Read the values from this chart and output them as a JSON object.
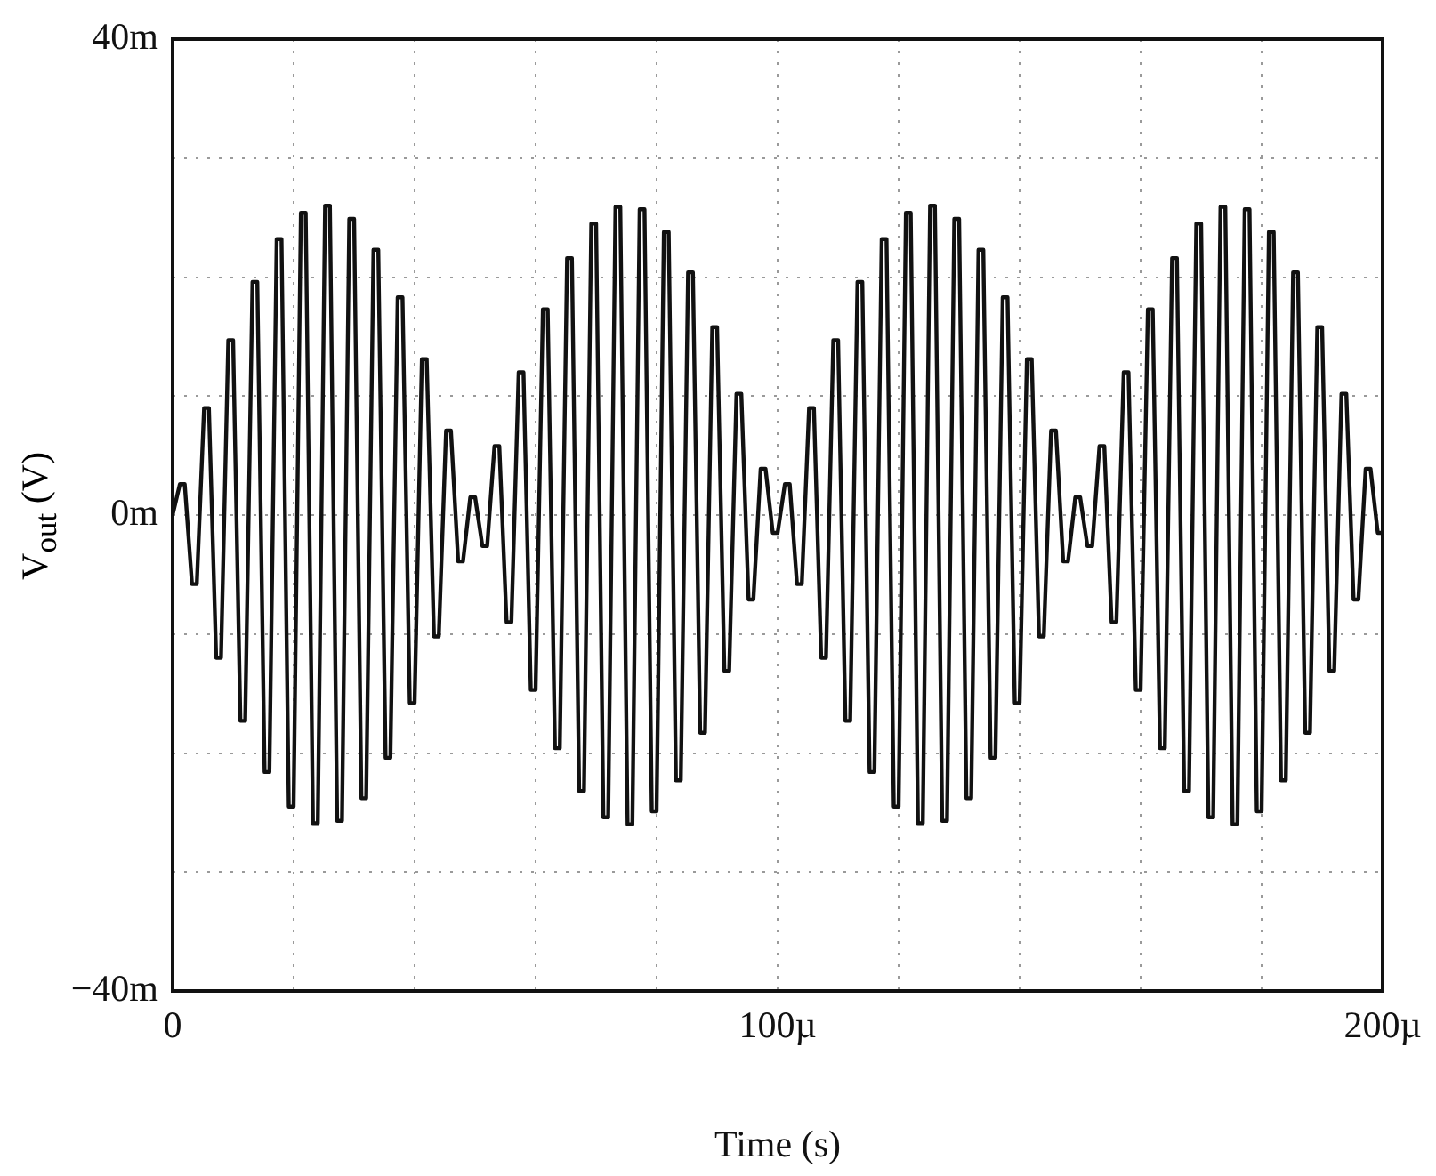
{
  "chart_data": {
    "type": "line",
    "xlabel": "Time (s)",
    "ylabel": "V$_{out}$ (V)",
    "color": "#111111",
    "grid": true,
    "line_style": "solid",
    "marker": "none",
    "xlim": [
      0,
      200
    ],
    "ylim": [
      -40,
      40
    ],
    "xticks": [
      {
        "value": 0,
        "label": "0"
      },
      {
        "value": 20,
        "label": null
      },
      {
        "value": 40,
        "label": null
      },
      {
        "value": 60,
        "label": null
      },
      {
        "value": 80,
        "label": null
      },
      {
        "value": 100,
        "label": "100µ"
      },
      {
        "value": 120,
        "label": null
      },
      {
        "value": 140,
        "label": null
      },
      {
        "value": 160,
        "label": null
      },
      {
        "value": 180,
        "label": null
      },
      {
        "value": 200,
        "label": "200µ"
      }
    ],
    "yticks": [
      {
        "value": -40,
        "label": "−40m"
      },
      {
        "value": -30,
        "label": null
      },
      {
        "value": -20,
        "label": null
      },
      {
        "value": -10,
        "label": null
      },
      {
        "value": 0,
        "label": "0m"
      },
      {
        "value": 10,
        "label": null
      },
      {
        "value": 20,
        "label": null
      },
      {
        "value": 30,
        "label": null
      },
      {
        "value": 40,
        "label": "40m"
      }
    ],
    "x": [
      0,
      1.2,
      2,
      3.2,
      4,
      5.2,
      6,
      7.2,
      8,
      9.2,
      10,
      11.2,
      12,
      13.2,
      14,
      15.2,
      16,
      17.2,
      18,
      19.2,
      20,
      21.2,
      22,
      23.2,
      24,
      25.2,
      26,
      27.2,
      28,
      29.2,
      30,
      31.2,
      32,
      33.2,
      34,
      35.2,
      36,
      37.2,
      38,
      39.2,
      40,
      41.2,
      42,
      43.2,
      44,
      45.2,
      46,
      47.2,
      48,
      49.2,
      50,
      51.2,
      52,
      53.2,
      54,
      55.2,
      56,
      57.2,
      58,
      59.2,
      60,
      61.2,
      62,
      63.2,
      64,
      65.2,
      66,
      67.2,
      68,
      69.2,
      70,
      71.2,
      72,
      73.2,
      74,
      75.2,
      76,
      77.2,
      78,
      79.2,
      80,
      81.2,
      82,
      83.2,
      84,
      85.2,
      86,
      87.2,
      88,
      89.2,
      90,
      91.2,
      92,
      93.2,
      94,
      95.2,
      96,
      97.2,
      98,
      99.2,
      100,
      101.2,
      102,
      103.2,
      104,
      105.2,
      106,
      107.2,
      108,
      109.2,
      110,
      111.2,
      112,
      113.2,
      114,
      115.2,
      116,
      117.2,
      118,
      119.2,
      120,
      121.2,
      122,
      123.2,
      124,
      125.2,
      126,
      127.2,
      128,
      129.2,
      130,
      131.2,
      132,
      133.2,
      134,
      135.2,
      136,
      137.2,
      138,
      139.2,
      140,
      141.2,
      142,
      143.2,
      144,
      145.2,
      146,
      147.2,
      148,
      149.2,
      150,
      151.2,
      152,
      153.2,
      154,
      155.2,
      156,
      157.2,
      158,
      159.2,
      160,
      161.2,
      162,
      163.2,
      164,
      165.2,
      166,
      167.2,
      168,
      169.2,
      170,
      171.2,
      172,
      173.2,
      174,
      175.2,
      176,
      177.2,
      178,
      179.2,
      180,
      181.2,
      182,
      183.2,
      184,
      185.2,
      186,
      187.2,
      188,
      189.2,
      190,
      191.2,
      192,
      193.2,
      194,
      195.2,
      196,
      197.2,
      198,
      199.2,
      200
    ],
    "values": [
      0,
      2.6,
      2.6,
      -5.8,
      -5.8,
      9,
      9,
      -12,
      -12,
      14.7,
      14.7,
      -17.3,
      -17.3,
      19.6,
      19.6,
      -21.6,
      -21.6,
      23.2,
      23.2,
      -24.5,
      -24.5,
      25.4,
      25.4,
      -25.9,
      -25.9,
      26,
      26,
      -25.7,
      -25.7,
      24.9,
      24.9,
      -23.8,
      -23.8,
      22.3,
      22.3,
      -20.4,
      -20.4,
      18.3,
      18.3,
      -15.8,
      -15.8,
      13.1,
      13.1,
      -10.2,
      -10.2,
      7.1,
      7.1,
      -3.9,
      -3.9,
      1.5,
      1.5,
      -2.6,
      -2.6,
      5.8,
      5.8,
      -9,
      -9,
      12,
      12,
      -14.7,
      -14.7,
      17.3,
      17.3,
      -19.6,
      -19.6,
      21.6,
      21.6,
      -23.2,
      -23.2,
      24.5,
      24.5,
      -25.4,
      -25.4,
      25.9,
      25.9,
      -26,
      -26,
      25.7,
      25.7,
      -24.9,
      -24.9,
      23.8,
      23.8,
      -22.3,
      -22.3,
      20.4,
      20.4,
      -18.3,
      -18.3,
      15.8,
      15.8,
      -13.1,
      -13.1,
      10.2,
      10.2,
      -7.1,
      -7.1,
      3.9,
      3.9,
      -1.5,
      -1.5,
      2.6,
      2.6,
      -5.8,
      -5.8,
      9,
      9,
      -12,
      -12,
      14.7,
      14.7,
      -17.3,
      -17.3,
      19.6,
      19.6,
      -21.6,
      -21.6,
      23.2,
      23.2,
      -24.5,
      -24.5,
      25.4,
      25.4,
      -25.9,
      -25.9,
      26,
      26,
      -25.7,
      -25.7,
      24.9,
      24.9,
      -23.8,
      -23.8,
      22.3,
      22.3,
      -20.4,
      -20.4,
      18.3,
      18.3,
      -15.8,
      -15.8,
      13.1,
      13.1,
      -10.2,
      -10.2,
      7.1,
      7.1,
      -3.9,
      -3.9,
      1.5,
      1.5,
      -2.6,
      -2.6,
      5.8,
      5.8,
      -9,
      -9,
      12,
      12,
      -14.7,
      -14.7,
      17.3,
      17.3,
      -19.6,
      -19.6,
      21.6,
      21.6,
      -23.2,
      -23.2,
      24.5,
      24.5,
      -25.4,
      -25.4,
      25.9,
      25.9,
      -26,
      -26,
      25.7,
      25.7,
      -24.9,
      -24.9,
      23.8,
      23.8,
      -22.3,
      -22.3,
      20.4,
      20.4,
      -18.3,
      -18.3,
      15.8,
      15.8,
      -13.1,
      -13.1,
      10.2,
      10.2,
      -7.1,
      -7.1,
      3.9,
      3.9,
      -1.5,
      -1.5
    ]
  }
}
